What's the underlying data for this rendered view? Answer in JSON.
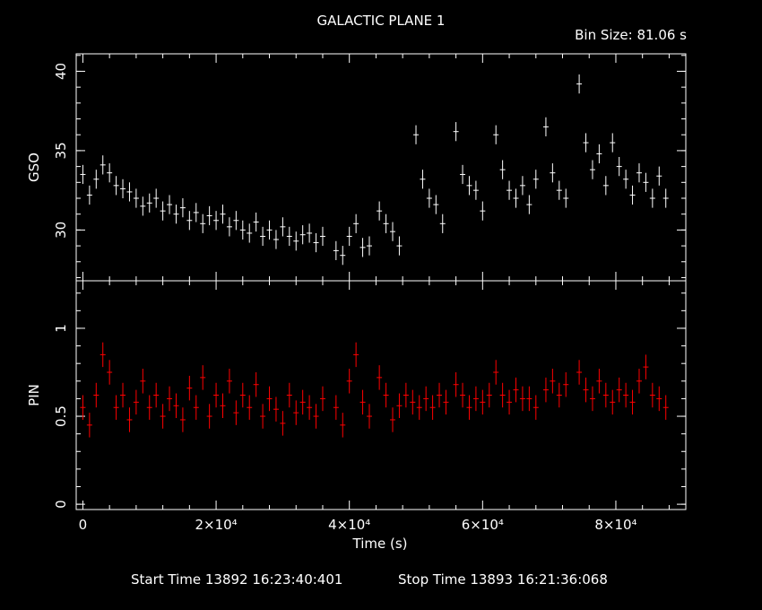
{
  "title": "GALACTIC PLANE 1",
  "bin_size": "Bin Size: 81.06 s",
  "start_time": "Start Time 13892 16:23:40:401",
  "stop_time": "Stop Time 13893 16:21:36:068",
  "colors": {
    "background": "#000000",
    "axes": "#ffffff",
    "gso": "#ffffff",
    "pin": "#ff0000"
  },
  "chart_data": [
    {
      "type": "line",
      "ylabel": "GSO",
      "xlabel": "",
      "xlim": [
        -1000,
        90500
      ],
      "ylim": [
        26.8,
        41.1
      ],
      "yticks": [
        30,
        35,
        40
      ],
      "ytick_labels": [
        "30",
        "35",
        "40"
      ],
      "grid": false,
      "series": [
        {
          "x": [
            0,
            1000,
            2000,
            3000,
            4000,
            5000,
            6000,
            7000,
            8000,
            9000,
            10000,
            11000,
            12000,
            13000,
            14000,
            15000,
            16000,
            17000,
            18000,
            19000,
            20000,
            21000,
            22000,
            23000,
            24000,
            25000,
            26000,
            27000,
            28000,
            29000,
            30000,
            31000,
            32000,
            33000,
            34000,
            35000,
            36000,
            38000,
            39000,
            40000,
            41000,
            42000,
            43000,
            44500,
            45500,
            46500,
            47500,
            50000,
            51000,
            52000,
            53000,
            54000,
            56000,
            57000,
            58000,
            59000,
            60000,
            62000,
            63000,
            64000,
            65000,
            66000,
            67000,
            68000,
            69500,
            70500,
            71500,
            72500,
            74500,
            75500,
            76500,
            77500,
            78500,
            79500,
            80500,
            81500,
            82500,
            83500,
            84500,
            85500,
            86500,
            87500
          ],
          "y": [
            33.5,
            32.2,
            33.2,
            34.1,
            33.6,
            32.8,
            32.6,
            32.4,
            32.0,
            31.5,
            31.7,
            32.0,
            31.2,
            31.6,
            31.0,
            31.4,
            30.6,
            31.1,
            30.4,
            30.9,
            30.6,
            31.0,
            30.2,
            30.6,
            30.0,
            29.8,
            30.5,
            29.6,
            30.0,
            29.4,
            30.2,
            29.6,
            29.3,
            29.7,
            29.8,
            29.2,
            29.6,
            28.7,
            28.4,
            29.6,
            30.4,
            28.9,
            29.0,
            31.2,
            30.4,
            29.9,
            29.0,
            36.0,
            33.2,
            32.0,
            31.6,
            30.4,
            36.2,
            33.5,
            32.8,
            32.5,
            31.2,
            36.0,
            33.8,
            32.5,
            32.0,
            32.8,
            31.6,
            33.2,
            36.5,
            33.6,
            32.5,
            32.0,
            39.2,
            35.5,
            33.8,
            34.8,
            32.8,
            35.5,
            34.0,
            33.2,
            32.2,
            33.6,
            33.0,
            32.0,
            33.4,
            32.0
          ],
          "y_error": 0.6
        }
      ]
    },
    {
      "type": "line",
      "ylabel": "PIN",
      "xlabel": "Time (s)",
      "xlim": [
        -1000,
        90500
      ],
      "ylim": [
        -0.03,
        1.27
      ],
      "yticks": [
        0,
        0.5,
        1
      ],
      "ytick_labels": [
        "0",
        "0.5",
        "1"
      ],
      "xticks": [
        0,
        20000,
        40000,
        60000,
        80000
      ],
      "xtick_labels": [
        "0",
        "2×10⁴",
        "4×10⁴",
        "6×10⁴",
        "8×10⁴"
      ],
      "grid": false,
      "series": [
        {
          "x": [
            0,
            1000,
            2000,
            3000,
            4000,
            5000,
            6000,
            7000,
            8000,
            9000,
            10000,
            11000,
            12000,
            13000,
            14000,
            15000,
            16000,
            17000,
            18000,
            19000,
            20000,
            21000,
            22000,
            23000,
            24000,
            25000,
            26000,
            27000,
            28000,
            29000,
            30000,
            31000,
            32000,
            33000,
            34000,
            35000,
            36000,
            38000,
            39000,
            40000,
            41000,
            42000,
            43000,
            44500,
            45500,
            46500,
            47500,
            48500,
            49500,
            50500,
            51500,
            52500,
            53500,
            54500,
            56000,
            57000,
            58000,
            59000,
            60000,
            61000,
            62000,
            63000,
            64000,
            65000,
            66000,
            67000,
            68000,
            69500,
            70500,
            71500,
            72500,
            74500,
            75500,
            76500,
            77500,
            78500,
            79500,
            80500,
            81500,
            82500,
            83500,
            84500,
            85500,
            86500,
            87500
          ],
          "y": [
            0.55,
            0.45,
            0.62,
            0.85,
            0.75,
            0.55,
            0.62,
            0.48,
            0.58,
            0.7,
            0.55,
            0.62,
            0.5,
            0.6,
            0.56,
            0.48,
            0.66,
            0.55,
            0.72,
            0.5,
            0.62,
            0.56,
            0.7,
            0.52,
            0.62,
            0.55,
            0.68,
            0.5,
            0.6,
            0.54,
            0.46,
            0.62,
            0.52,
            0.58,
            0.55,
            0.5,
            0.6,
            0.55,
            0.45,
            0.7,
            0.85,
            0.58,
            0.5,
            0.72,
            0.62,
            0.48,
            0.56,
            0.62,
            0.58,
            0.55,
            0.6,
            0.55,
            0.62,
            0.58,
            0.68,
            0.62,
            0.55,
            0.6,
            0.58,
            0.62,
            0.75,
            0.62,
            0.58,
            0.65,
            0.6,
            0.6,
            0.55,
            0.65,
            0.7,
            0.62,
            0.68,
            0.75,
            0.65,
            0.6,
            0.7,
            0.62,
            0.58,
            0.65,
            0.62,
            0.58,
            0.7,
            0.78,
            0.62,
            0.6,
            0.55
          ],
          "y_error": 0.07
        }
      ]
    }
  ]
}
